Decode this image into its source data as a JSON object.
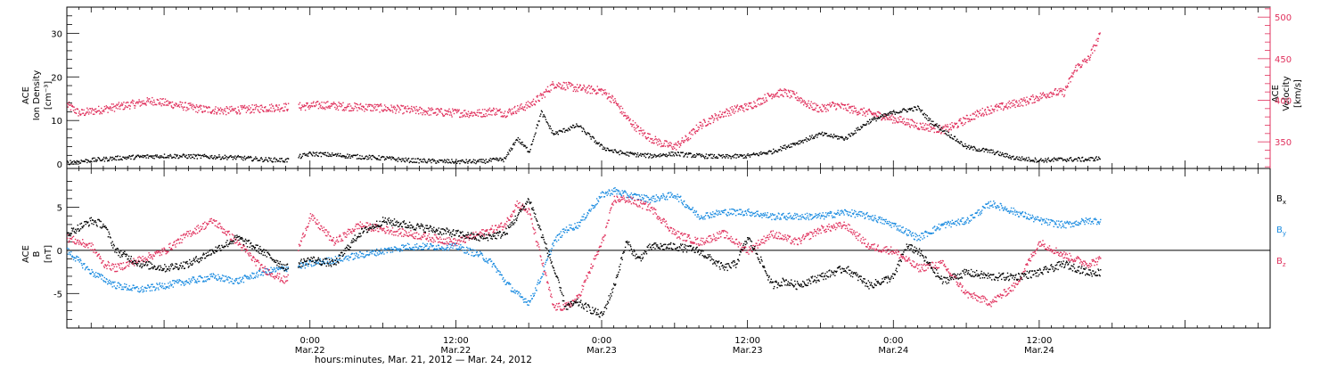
{
  "colors": {
    "black": "#000000",
    "pink": "#e0305c",
    "blue": "#1a8be0"
  },
  "x_axis": {
    "title": "hours:minutes, Mar. 21, 2012 — Mar. 24, 2012",
    "range_hours": [
      -20,
      79
    ],
    "major_ticks": [
      {
        "h": 0,
        "time": "0:00",
        "date": "Mar.22"
      },
      {
        "h": 12,
        "time": "12:00",
        "date": "Mar.22"
      },
      {
        "h": 24,
        "time": "0:00",
        "date": "Mar.23"
      },
      {
        "h": 36,
        "time": "12:00",
        "date": "Mar.23"
      },
      {
        "h": 48,
        "time": "0:00",
        "date": "Mar.24"
      },
      {
        "h": 60,
        "time": "12:00",
        "date": "Mar.24"
      }
    ]
  },
  "panel_top": {
    "left_label": [
      "ACE",
      "Ion Density",
      "[cm⁻³]"
    ],
    "right_label": [
      "ACE",
      "Velocity",
      "[km/s]"
    ],
    "left_ylim": [
      -1,
      36
    ],
    "left_ticks": [
      "0",
      "10",
      "20",
      "30"
    ],
    "left_tick_values": [
      0,
      10,
      20,
      30
    ],
    "right_ylim": [
      318,
      512
    ],
    "right_ticks": [
      "350",
      "400",
      "450",
      "500"
    ],
    "right_tick_values": [
      350,
      400,
      450,
      500
    ]
  },
  "panel_bottom": {
    "left_label": [
      "ACE",
      "B",
      "[nT]"
    ],
    "ylim": [
      -9,
      9.5
    ],
    "ticks": [
      "5",
      "0",
      "-5"
    ],
    "tick_values": [
      5,
      0,
      -5
    ],
    "legend": [
      {
        "base": "B",
        "sub": "x",
        "color": "#000000"
      },
      {
        "base": "B",
        "sub": "y",
        "color": "#1a8be0"
      },
      {
        "base": "B",
        "sub": "z",
        "color": "#e0305c"
      }
    ]
  },
  "chart_data": {
    "type": "scatter",
    "x_unit": "hours since 0:00 Mar. 22, 2012",
    "gap": [
      -1.8,
      -1.0
    ],
    "density": {
      "name": "Ion Density",
      "x": [
        -20,
        -18,
        -16,
        -14,
        -12,
        -10,
        -8,
        -6,
        -4,
        -2,
        0,
        2,
        4,
        6,
        8,
        10,
        12,
        14,
        15,
        16,
        17,
        18,
        19,
        20,
        21,
        22,
        24,
        25,
        26,
        28,
        30,
        32,
        34,
        36,
        38,
        40,
        42,
        44,
        46,
        48,
        50,
        51,
        52,
        53,
        54,
        56,
        58,
        60,
        62,
        64,
        65
      ],
      "y": [
        0.5,
        1.0,
        1.5,
        1.8,
        2.0,
        1.9,
        1.8,
        1.6,
        1.2,
        1.0,
        2.5,
        2.2,
        1.8,
        1.5,
        1.0,
        0.8,
        0.7,
        0.7,
        1.0,
        1.2,
        6.0,
        3.0,
        12.0,
        7.0,
        8.0,
        9.0,
        4.0,
        3.0,
        2.5,
        2.0,
        2.5,
        2.0,
        1.8,
        2.0,
        3.0,
        5.0,
        7.0,
        6.0,
        10.0,
        12.0,
        13.0,
        10.0,
        8.0,
        6.0,
        4.0,
        3.0,
        1.5,
        1.0,
        1.2,
        1.2,
        1.5
      ]
    },
    "velocity": {
      "name": "Velocity",
      "x": [
        -20,
        -19,
        -17,
        -15,
        -13,
        -11,
        -9,
        -7,
        -5,
        -3,
        -1,
        1,
        3,
        5,
        7,
        9,
        11,
        13,
        14,
        15,
        16,
        17,
        18,
        19,
        20,
        21,
        22,
        24,
        25,
        26,
        27,
        28,
        29,
        30,
        31,
        32,
        33,
        34,
        35,
        36,
        37,
        38,
        39,
        40,
        41,
        42,
        43,
        44,
        45,
        46,
        47,
        48,
        49,
        50,
        51,
        52,
        53,
        54,
        55,
        56,
        57,
        58,
        59,
        60,
        61,
        62,
        63,
        64,
        65
      ],
      "y": [
        395,
        385,
        390,
        395,
        400,
        395,
        390,
        388,
        390,
        392,
        393,
        395,
        393,
        392,
        390,
        388,
        386,
        385,
        385,
        388,
        385,
        390,
        395,
        405,
        420,
        418,
        415,
        412,
        400,
        380,
        365,
        355,
        348,
        345,
        355,
        370,
        378,
        385,
        390,
        393,
        400,
        408,
        410,
        405,
        395,
        390,
        395,
        392,
        388,
        385,
        382,
        378,
        375,
        370,
        368,
        365,
        370,
        378,
        385,
        390,
        393,
        397,
        400,
        405,
        410,
        410,
        440,
        450,
        480
      ]
    },
    "Bx": {
      "name": "Bx",
      "x": [
        -20,
        -18,
        -17,
        -16,
        -14,
        -12,
        -10,
        -8,
        -6,
        -4,
        -2,
        0,
        2,
        4,
        6,
        8,
        10,
        12,
        14,
        16,
        17,
        18,
        19,
        20,
        21,
        22,
        24,
        25,
        26,
        27,
        28,
        30,
        32,
        34,
        35,
        36,
        37,
        38,
        39,
        40,
        42,
        44,
        46,
        48,
        49,
        50,
        52,
        54,
        56,
        58,
        60,
        62,
        64,
        65
      ],
      "y": [
        2.0,
        3.5,
        3.0,
        0.0,
        -1.5,
        -2.0,
        -1.5,
        0.0,
        1.5,
        0.0,
        -2.0,
        -1.0,
        -1.5,
        2.0,
        3.5,
        3.0,
        2.5,
        2.0,
        1.5,
        2.0,
        4.0,
        6.0,
        2.0,
        -2.0,
        -6.5,
        -6.0,
        -7.5,
        -4.0,
        1.0,
        -1.0,
        0.5,
        0.5,
        0.0,
        -2.0,
        -1.5,
        1.5,
        -1.0,
        -4.0,
        -3.5,
        -4.0,
        -3.0,
        -2.0,
        -4.0,
        -3.0,
        0.5,
        0.0,
        -3.5,
        -2.5,
        -3.0,
        -3.0,
        -2.5,
        -1.5,
        -2.5,
        -2.5
      ]
    },
    "By": {
      "name": "By",
      "x": [
        -20,
        -18,
        -16,
        -14,
        -12,
        -10,
        -8,
        -6,
        -4,
        -2,
        0,
        2,
        4,
        6,
        8,
        10,
        12,
        14,
        15,
        16,
        17,
        18,
        19,
        20,
        21,
        22,
        24,
        25,
        26,
        28,
        30,
        32,
        34,
        36,
        38,
        40,
        42,
        44,
        46,
        48,
        50,
        52,
        54,
        56,
        58,
        60,
        62,
        64,
        65
      ],
      "y": [
        0.0,
        -2.5,
        -4.0,
        -4.5,
        -4.0,
        -3.5,
        -3.0,
        -3.5,
        -2.5,
        -2.0,
        -1.5,
        -1.0,
        -0.5,
        0.0,
        0.5,
        0.5,
        0.5,
        -0.5,
        -1.5,
        -3.5,
        -5.0,
        -6.0,
        -3.0,
        1.0,
        2.5,
        3.0,
        6.5,
        7.0,
        6.5,
        6.0,
        6.5,
        4.0,
        4.5,
        4.5,
        4.0,
        4.0,
        4.0,
        4.5,
        4.0,
        3.0,
        1.5,
        3.0,
        3.5,
        5.5,
        4.5,
        3.5,
        3.0,
        3.5,
        3.5
      ]
    },
    "Bz": {
      "name": "Bz",
      "x": [
        -20,
        -18,
        -17,
        -16,
        -14,
        -12,
        -10,
        -8,
        -6,
        -4,
        -2,
        0,
        2,
        4,
        6,
        8,
        10,
        12,
        14,
        16,
        17,
        18,
        19,
        20,
        21,
        22,
        24,
        25,
        26,
        27,
        28,
        30,
        32,
        34,
        36,
        38,
        40,
        42,
        44,
        46,
        48,
        50,
        52,
        54,
        56,
        58,
        60,
        62,
        64,
        65
      ],
      "y": [
        1.5,
        0.5,
        -1.5,
        -2.0,
        -1.0,
        0.0,
        2.0,
        3.5,
        1.0,
        -2.0,
        -3.5,
        4.0,
        1.0,
        3.0,
        2.5,
        2.0,
        1.5,
        1.0,
        2.0,
        3.0,
        5.5,
        4.5,
        -1.0,
        -6.5,
        -6.5,
        -5.5,
        1.0,
        6.0,
        6.0,
        5.5,
        5.0,
        2.0,
        1.0,
        2.0,
        0.0,
        2.0,
        1.0,
        2.5,
        3.0,
        0.5,
        0.0,
        -2.0,
        -1.5,
        -5.0,
        -6.0,
        -4.0,
        1.0,
        -0.5,
        -1.5,
        -1.0
      ]
    }
  }
}
